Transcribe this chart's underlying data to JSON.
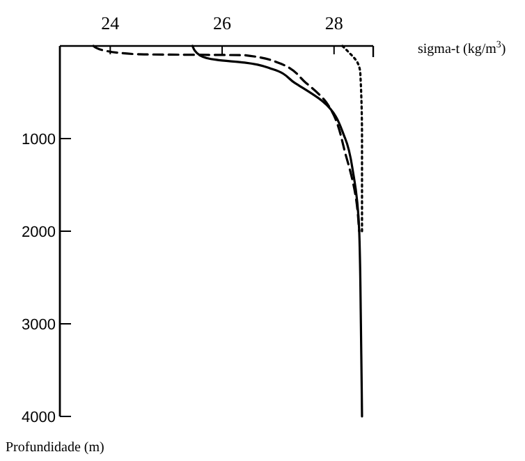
{
  "chart_data": {
    "type": "line",
    "xlabel": "sigma-t (kg/m$^{3}$)",
    "ylabel": "Profundidade (m)",
    "xlim": [
      23.1,
      28.7
    ],
    "xticks": [
      24,
      26,
      28
    ],
    "ylim": [
      4000,
      0
    ],
    "yticks": [
      1000,
      2000,
      3000,
      4000
    ],
    "marker": "none",
    "series": [
      {
        "color": "#000000",
        "line_style": "solid",
        "x": [
          25.47,
          25.6,
          25.9,
          26.4,
          26.9,
          27.3,
          27.8,
          28.2,
          28.35,
          28.45,
          28.48,
          28.5
        ],
        "values": [
          0,
          100,
          150,
          180,
          250,
          400,
          600,
          1000,
          1400,
          2000,
          3000,
          4000
        ]
      },
      {
        "color": "#000000",
        "line_style": "dashed",
        "x": [
          23.7,
          23.9,
          24.5,
          26.4,
          27.0,
          27.5,
          27.85,
          28.22,
          28.38,
          28.45
        ],
        "values": [
          0,
          50,
          90,
          100,
          180,
          400,
          600,
          1200,
          1600,
          2000
        ]
      },
      {
        "color": "#000000",
        "line_style": "dotted",
        "x": [
          28.15,
          28.25,
          28.42,
          28.47,
          28.5,
          28.5
        ],
        "values": [
          0,
          60,
          180,
          300,
          1000,
          2000
        ]
      }
    ]
  }
}
